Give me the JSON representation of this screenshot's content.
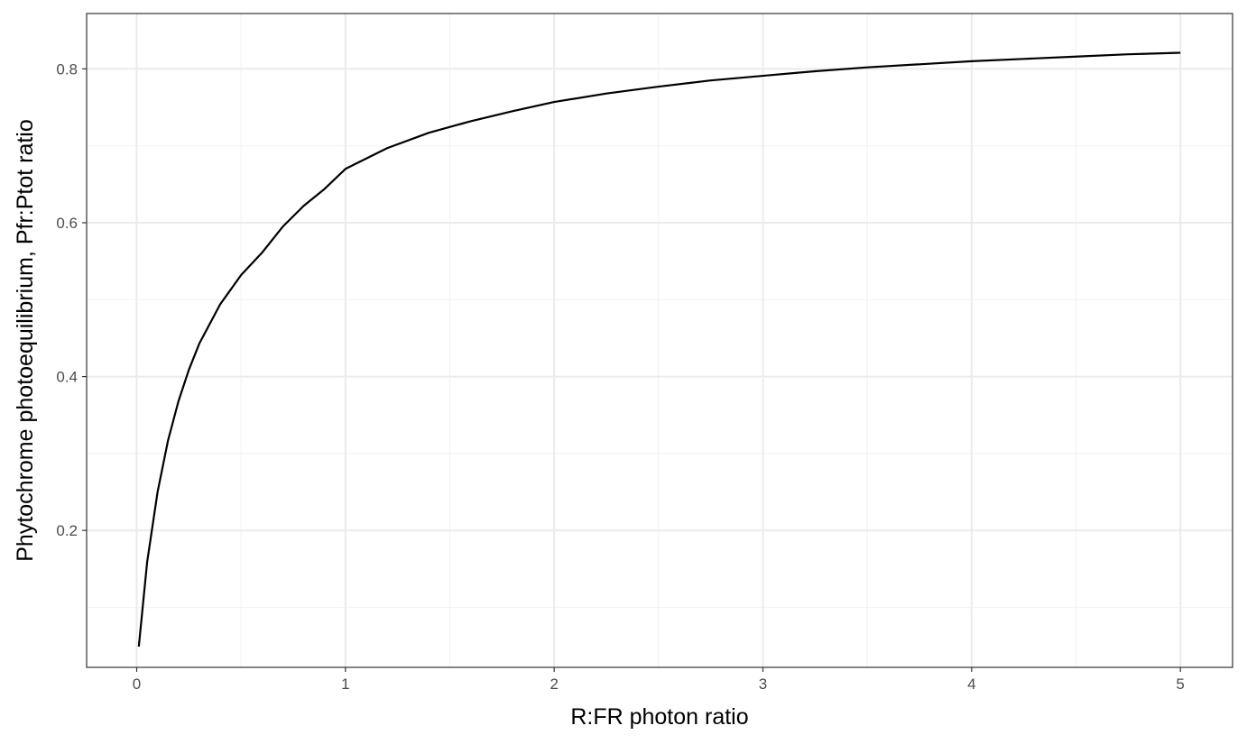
{
  "chart_data": {
    "type": "line",
    "title": "",
    "xlabel": "R:FR photon ratio",
    "ylabel": "Phytochrome photoequilibrium, Pfr:Ptot ratio",
    "xlim": [
      -0.24,
      5.25
    ],
    "ylim": [
      0.022,
      0.872
    ],
    "x_ticks": [
      0,
      1,
      2,
      3,
      4,
      5
    ],
    "y_ticks": [
      0.2,
      0.4,
      0.6,
      0.8
    ],
    "x_tick_labels": [
      "0",
      "1",
      "2",
      "3",
      "4",
      "5"
    ],
    "y_tick_labels": [
      "0.2",
      "0.4",
      "0.6",
      "0.8"
    ],
    "grid": true,
    "legend": "none",
    "colors": {
      "line": "#000000",
      "grid_major": "#ebebeb",
      "grid_minor": "#f3f3f3",
      "panel_border": "#333333",
      "tick_text": "#4d4d4d"
    },
    "series": [
      {
        "x": [
          0.01,
          0.05,
          0.1,
          0.15,
          0.2,
          0.25,
          0.3,
          0.4,
          0.5,
          0.6,
          0.7,
          0.8,
          0.9,
          1.0,
          1.2,
          1.4,
          1.6,
          1.8,
          2.0,
          2.25,
          2.5,
          2.75,
          3.0,
          3.25,
          3.5,
          3.75,
          4.0,
          4.25,
          4.5,
          4.75,
          5.0
        ],
        "y": [
          0.049,
          0.159,
          0.25,
          0.317,
          0.368,
          0.409,
          0.443,
          0.494,
          0.532,
          0.561,
          0.595,
          0.622,
          0.644,
          0.67,
          0.697,
          0.717,
          0.732,
          0.745,
          0.757,
          0.768,
          0.777,
          0.785,
          0.791,
          0.797,
          0.802,
          0.806,
          0.81,
          0.813,
          0.816,
          0.819,
          0.821
        ]
      }
    ]
  }
}
